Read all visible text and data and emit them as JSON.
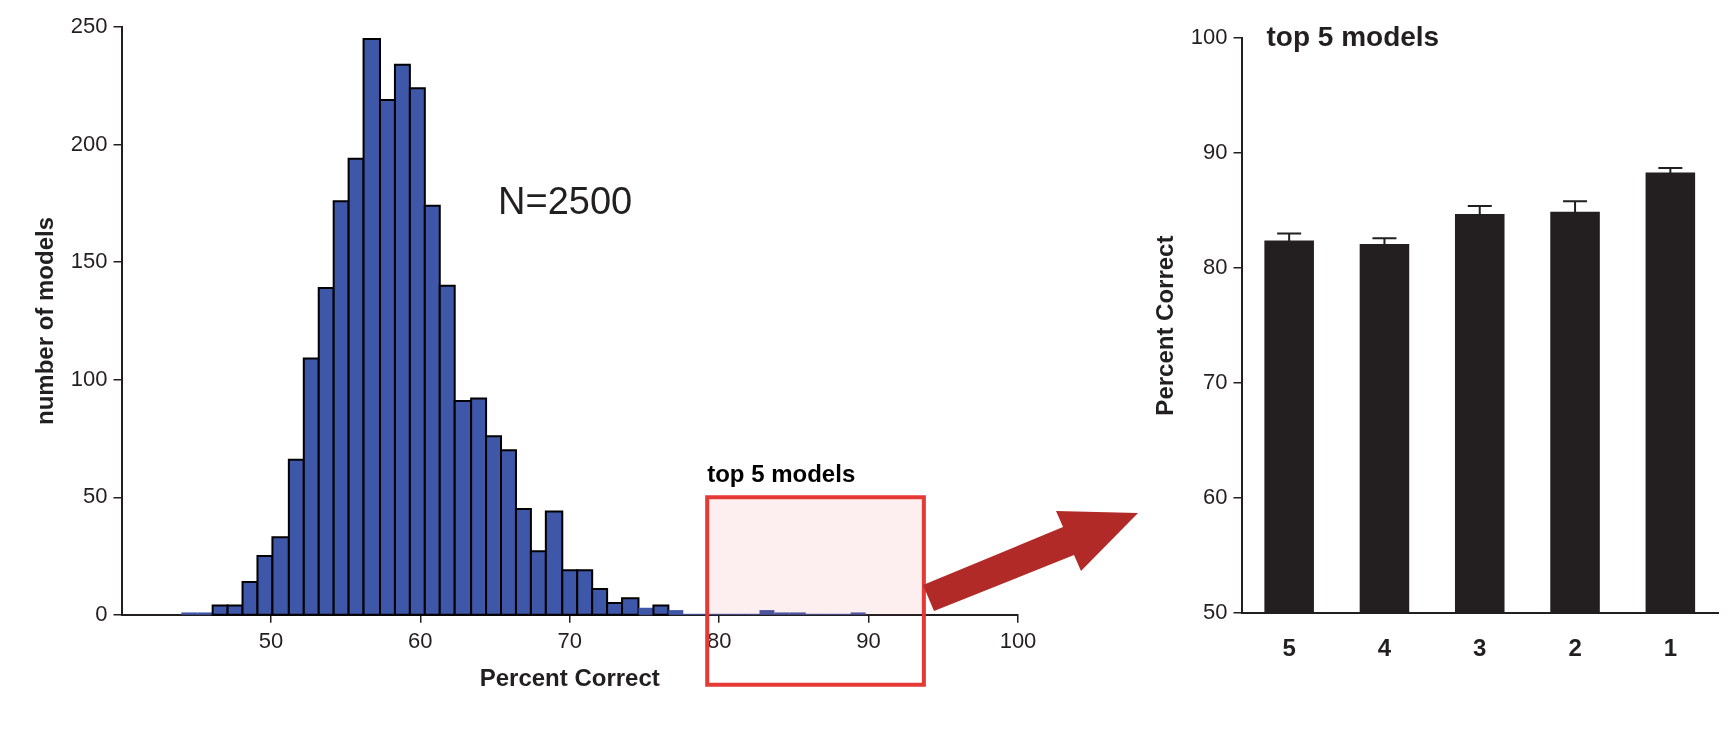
{
  "chart_data": [
    {
      "type": "histogram",
      "xlabel": "Percent Correct",
      "ylabel": "number of models",
      "color": "#3f57a8",
      "bins": [
        44.0,
        45.1,
        46.1,
        47.1,
        48.1,
        49.1,
        50.1,
        51.2,
        52.2,
        53.2,
        54.2,
        55.2,
        56.2,
        57.3,
        58.3,
        59.3,
        60.3,
        61.3,
        62.3,
        63.4,
        64.4,
        65.4,
        66.4,
        67.4,
        68.4,
        69.5,
        70.5,
        71.5,
        72.5,
        73.5,
        74.6,
        75.6,
        76.6,
        77.6,
        78.7,
        79.7,
        80.7,
        81.7,
        82.7,
        83.7,
        84.7,
        85.8,
        86.8,
        87.8,
        88.8,
        89.8
      ],
      "values": [
        1,
        1,
        4,
        4,
        14,
        25,
        33,
        66,
        109,
        139,
        176,
        194,
        245,
        219,
        234,
        224,
        174,
        140,
        91,
        92,
        76,
        70,
        45,
        27,
        44,
        19,
        19,
        11,
        5,
        7,
        3,
        4,
        2,
        0,
        0,
        0,
        0,
        0,
        2,
        1,
        1,
        0,
        0,
        0,
        1
      ],
      "xlim": [
        40,
        100
      ],
      "xticks": [
        50,
        60,
        70,
        80,
        90,
        100
      ],
      "ylim": [
        0,
        250
      ],
      "yticks": [
        0,
        50,
        100,
        150,
        200,
        250
      ],
      "annotations": [
        "N=2500"
      ],
      "bands": [
        {
          "axis": "x",
          "from": 79.2,
          "to": 93.7,
          "label": "top 5 models",
          "color": "#e53935"
        }
      ]
    },
    {
      "type": "bar",
      "title": "top 5 models",
      "ylabel": "Percent Correct",
      "categories": [
        "5",
        "4",
        "3",
        "2",
        "1"
      ],
      "values": [
        82.4,
        82.1,
        84.7,
        84.9,
        88.3
      ],
      "errors": [
        0.6,
        0.5,
        0.7,
        0.9,
        0.4
      ],
      "color": "#231f20",
      "ylim": [
        50,
        100
      ],
      "yticks": [
        50,
        60,
        70,
        80,
        90,
        100
      ]
    }
  ]
}
